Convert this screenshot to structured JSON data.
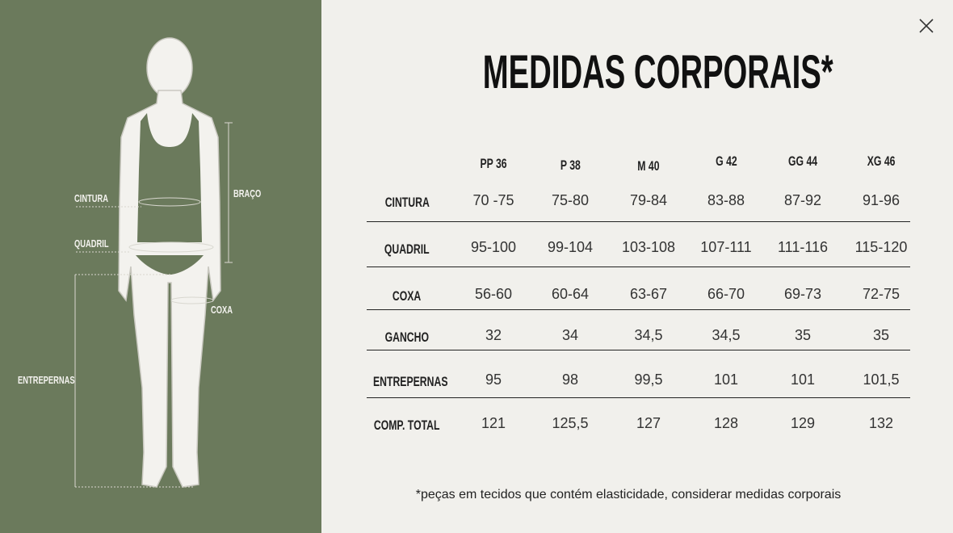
{
  "figure": {
    "labels": {
      "cintura": "CINTURA",
      "quadril": "QUADRIL",
      "braco": "BRAÇO",
      "coxa": "COXA",
      "entrepernas": "ENTREPERNAS"
    }
  },
  "header": {
    "title": "MEDIDAS CORPORAIS*"
  },
  "table": {
    "columns": [
      "PP 36",
      "P 38",
      "M 40",
      "G 42",
      "GG 44",
      "XG 46"
    ],
    "rows": [
      [
        "CINTURA",
        "70 -75",
        "75-80",
        "79-84",
        "83-88",
        "87-92",
        "91-96"
      ],
      [
        "QUADRIL",
        "95-100",
        "99-104",
        "103-108",
        "107-111",
        "111-116",
        "115-120"
      ],
      [
        "COXA",
        "56-60",
        "60-64",
        "63-67",
        "66-70",
        "69-73",
        "72-75"
      ],
      [
        "GANCHO",
        "32",
        "34",
        "34,5",
        "34,5",
        "35",
        "35"
      ],
      [
        "ENTREPERNAS",
        "95",
        "98",
        "99,5",
        "101",
        "101",
        "101,5"
      ],
      [
        "COMP. TOTAL",
        "121",
        "125,5",
        "127",
        "128",
        "129",
        "132"
      ]
    ]
  },
  "footnote": "*peças em tecidos que contém elasticidade, considerar medidas corporais"
}
